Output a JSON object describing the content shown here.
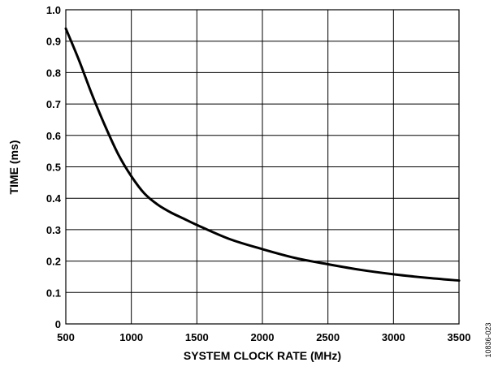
{
  "chart_data": {
    "type": "line",
    "xlabel": "SYSTEM CLOCK RATE (MHz)",
    "ylabel": "TIME (ms)",
    "xlim": [
      500,
      3500
    ],
    "ylim": [
      0,
      1.0
    ],
    "x_ticks": [
      500,
      1000,
      1500,
      2000,
      2500,
      3000,
      3500
    ],
    "y_ticks": [
      0,
      0.1,
      0.2,
      0.3,
      0.4,
      0.5,
      0.6,
      0.7,
      0.8,
      0.9,
      1.0
    ],
    "x_tick_labels": [
      "500",
      "1000",
      "1500",
      "2000",
      "2500",
      "3000",
      "3500"
    ],
    "y_tick_labels": [
      "0",
      "0.1",
      "0.2",
      "0.3",
      "0.4",
      "0.5",
      "0.6",
      "0.7",
      "0.8",
      "0.9",
      "1.0"
    ],
    "grid": true,
    "series": [
      {
        "x": [
          500,
          600,
          700,
          800,
          900,
          1000,
          1100,
          1200,
          1300,
          1400,
          1500,
          1750,
          2000,
          2250,
          2500,
          2750,
          3000,
          3250,
          3500
        ],
        "y": [
          0.94,
          0.84,
          0.73,
          0.63,
          0.54,
          0.47,
          0.415,
          0.38,
          0.355,
          0.335,
          0.315,
          0.27,
          0.238,
          0.21,
          0.19,
          0.172,
          0.158,
          0.147,
          0.138
        ]
      }
    ]
  },
  "figure_id": "10836-023"
}
